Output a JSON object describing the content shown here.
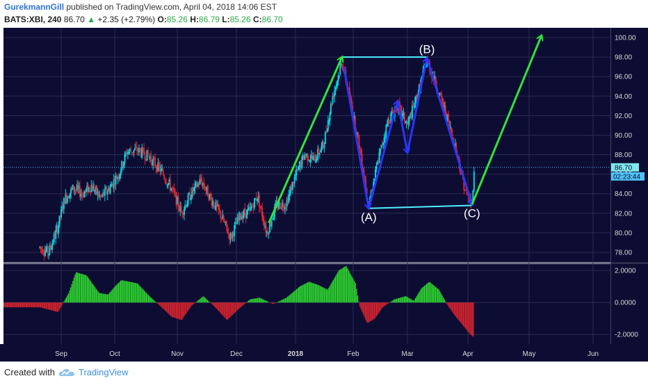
{
  "header": {
    "author": "GurekmannGill",
    "published": "published on TradingView.com, April 04, 2018 14:06 EST",
    "symbol": "BATS:XBI, 240",
    "last": "86.70",
    "change_arrow": "▲",
    "change": "+2.35 (+2.79%)",
    "o_label": "O:",
    "o_value": "85.26",
    "h_label": "H:",
    "h_value": "86.79",
    "l_label": "L:",
    "l_value": "85.26",
    "c_label": "C:",
    "c_value": "86.70"
  },
  "price_badge": "86.70",
  "countdown_badge": "02:23:44",
  "footer": {
    "created_with": "Created with",
    "brand": "TradingView",
    "logo_icon": "tradingview-cloud-icon"
  },
  "chart_data": [
    {
      "type": "candlestick",
      "symbol": "BATS:XBI",
      "interval": "240",
      "y_range": [
        77,
        101
      ],
      "yticks": [
        78,
        80,
        82,
        84,
        86,
        88,
        90,
        92,
        94,
        96,
        98,
        100
      ],
      "ytick_labels": [
        "78.00",
        "80.00",
        "82.00",
        "84.00",
        "86.00",
        "88.00",
        "90.00",
        "92.00",
        "94.00",
        "96.00",
        "98.00",
        "100.00"
      ],
      "x_labels": [
        "Sep",
        "Oct",
        "Nov",
        "Dec",
        "2018",
        "Feb",
        "Mar",
        "Apr",
        "May",
        "Jun"
      ],
      "last_price": 86.7,
      "up_color": "#00d4e0",
      "down_color": "#e0252e",
      "price_path": [
        {
          "date": "Aug 20",
          "price": 78.5
        },
        {
          "date": "Aug 25",
          "price": 78.0
        },
        {
          "date": "Aug 30",
          "price": 80.5
        },
        {
          "date": "Sep 3",
          "price": 83.5
        },
        {
          "date": "Sep 8",
          "price": 84.6
        },
        {
          "date": "Sep 13",
          "price": 84.0
        },
        {
          "date": "Sep 18",
          "price": 84.8
        },
        {
          "date": "Sep 23",
          "price": 83.6
        },
        {
          "date": "Sep 28",
          "price": 84.5
        },
        {
          "date": "Oct 3",
          "price": 86.0
        },
        {
          "date": "Oct 7",
          "price": 88.3
        },
        {
          "date": "Oct 12",
          "price": 88.5
        },
        {
          "date": "Oct 18",
          "price": 87.8
        },
        {
          "date": "Oct 24",
          "price": 86.3
        },
        {
          "date": "Oct 29",
          "price": 84.6
        },
        {
          "date": "Nov 3",
          "price": 82.1
        },
        {
          "date": "Nov 8",
          "price": 84.0
        },
        {
          "date": "Nov 13",
          "price": 85.4
        },
        {
          "date": "Nov 18",
          "price": 83.5
        },
        {
          "date": "Nov 23",
          "price": 81.8
        },
        {
          "date": "Nov 28",
          "price": 79.5
        },
        {
          "date": "Dec 3",
          "price": 81.8
        },
        {
          "date": "Dec 8",
          "price": 82.2
        },
        {
          "date": "Dec 12",
          "price": 83.8
        },
        {
          "date": "Dec 17",
          "price": 80.0
        },
        {
          "date": "Dec 22",
          "price": 82.8
        },
        {
          "date": "Dec 27",
          "price": 83.0
        },
        {
          "date": "Jan 1",
          "price": 85.8
        },
        {
          "date": "Jan 6",
          "price": 88.0
        },
        {
          "date": "Jan 11",
          "price": 87.5
        },
        {
          "date": "Jan 16",
          "price": 89.0
        },
        {
          "date": "Jan 21",
          "price": 94.0
        },
        {
          "date": "Jan 26",
          "price": 97.5
        },
        {
          "date": "Jan 31",
          "price": 93.0
        },
        {
          "date": "Feb 5",
          "price": 88.0
        },
        {
          "date": "Feb 9",
          "price": 82.8
        },
        {
          "date": "Feb 14",
          "price": 87.5
        },
        {
          "date": "Feb 19",
          "price": 91.5
        },
        {
          "date": "Feb 24",
          "price": 93.0
        },
        {
          "date": "Mar 1",
          "price": 91.0
        },
        {
          "date": "Mar 6",
          "price": 94.0
        },
        {
          "date": "Mar 11",
          "price": 97.7
        },
        {
          "date": "Mar 16",
          "price": 95.0
        },
        {
          "date": "Mar 21",
          "price": 92.0
        },
        {
          "date": "Mar 26",
          "price": 88.5
        },
        {
          "date": "Mar 31",
          "price": 84.0
        },
        {
          "date": "Apr 3",
          "price": 83.0
        },
        {
          "date": "Apr 4",
          "price": 86.7
        }
      ],
      "annotations": {
        "labels": [
          {
            "text": "(A)",
            "date": "Feb 9",
            "price": 81.2
          },
          {
            "text": "(B)",
            "date": "Mar 11",
            "price": 98.4
          },
          {
            "text": "(C)",
            "date": "Apr 3",
            "price": 81.6
          }
        ],
        "green_arrows": [
          {
            "from": {
              "date": "Dec 18",
              "price": 81.0
            },
            "to": {
              "date": "Jan 26",
              "price": 98.0
            }
          },
          {
            "from": {
              "date": "Apr 3",
              "price": 82.9
            },
            "to": {
              "date": "May 7",
              "price": 100.2
            }
          }
        ],
        "cyan_lines": [
          {
            "from": {
              "date": "Jan 26",
              "price": 98.0
            },
            "to": {
              "date": "Mar 11",
              "price": 98.0
            }
          },
          {
            "from": {
              "date": "Feb 9",
              "price": 82.5
            },
            "to": {
              "date": "Apr 3",
              "price": 82.8
            }
          }
        ],
        "blue_arrows": [
          {
            "from": {
              "date": "Jan 27",
              "price": 97.0
            },
            "to": {
              "date": "Feb 9",
              "price": 82.5
            }
          },
          {
            "from": {
              "date": "Feb 9",
              "price": 82.5
            },
            "to": {
              "date": "Feb 24",
              "price": 93.5
            }
          },
          {
            "from": {
              "date": "Feb 24",
              "price": 93.5
            },
            "to": {
              "date": "Mar 1",
              "price": 88.2
            }
          },
          {
            "from": {
              "date": "Mar 1",
              "price": 88.2
            },
            "to": {
              "date": "Mar 11",
              "price": 97.9
            }
          },
          {
            "from": {
              "date": "Mar 11",
              "price": 97.9
            },
            "to": {
              "date": "Apr 3",
              "price": 82.9
            }
          }
        ]
      }
    },
    {
      "type": "histogram",
      "name": "oscillator",
      "y_range": [
        -2.6,
        2.4
      ],
      "yticks": [
        2,
        0,
        -2
      ],
      "ytick_labels": [
        "2.0000",
        "0.0000",
        "-2.0000"
      ],
      "pos_color": "#2edc2e",
      "neg_color": "#e0252e",
      "profile": [
        {
          "date": "Aug 20",
          "value": -0.3
        },
        {
          "date": "Aug 30",
          "value": -0.6
        },
        {
          "date": "Sep 5",
          "value": 0.6
        },
        {
          "date": "Sep 9",
          "value": 1.9
        },
        {
          "date": "Sep 15",
          "value": 1.7
        },
        {
          "date": "Sep 22",
          "value": 0.6
        },
        {
          "date": "Sep 27",
          "value": 0.5
        },
        {
          "date": "Oct 4",
          "value": 1.4
        },
        {
          "date": "Oct 12",
          "value": 1.2
        },
        {
          "date": "Oct 18",
          "value": 0.4
        },
        {
          "date": "Oct 24",
          "value": -0.3
        },
        {
          "date": "Oct 29",
          "value": -0.9
        },
        {
          "date": "Nov 3",
          "value": -1.1
        },
        {
          "date": "Nov 8",
          "value": -0.2
        },
        {
          "date": "Nov 14",
          "value": 0.4
        },
        {
          "date": "Nov 20",
          "value": -0.3
        },
        {
          "date": "Nov 26",
          "value": -1.1
        },
        {
          "date": "Dec 2",
          "value": -0.4
        },
        {
          "date": "Dec 8",
          "value": 0.2
        },
        {
          "date": "Dec 13",
          "value": 0.3
        },
        {
          "date": "Dec 20",
          "value": -0.1
        },
        {
          "date": "Dec 27",
          "value": 0.3
        },
        {
          "date": "Jan 3",
          "value": 1.0
        },
        {
          "date": "Jan 8",
          "value": 1.3
        },
        {
          "date": "Jan 13",
          "value": 1.1
        },
        {
          "date": "Jan 18",
          "value": 0.8
        },
        {
          "date": "Jan 24",
          "value": 2.0
        },
        {
          "date": "Jan 28",
          "value": 2.3
        },
        {
          "date": "Feb 2",
          "value": 1.2
        },
        {
          "date": "Feb 4",
          "value": -0.2
        },
        {
          "date": "Feb 8",
          "value": -1.3
        },
        {
          "date": "Feb 12",
          "value": -1.0
        },
        {
          "date": "Feb 16",
          "value": -0.3
        },
        {
          "date": "Feb 22",
          "value": 0.2
        },
        {
          "date": "Feb 28",
          "value": 0.4
        },
        {
          "date": "Mar 4",
          "value": 0.1
        },
        {
          "date": "Mar 8",
          "value": 0.9
        },
        {
          "date": "Mar 12",
          "value": 1.3
        },
        {
          "date": "Mar 17",
          "value": 0.8
        },
        {
          "date": "Mar 21",
          "value": -0.1
        },
        {
          "date": "Mar 25",
          "value": -0.8
        },
        {
          "date": "Mar 29",
          "value": -1.4
        },
        {
          "date": "Apr 2",
          "value": -2.0
        },
        {
          "date": "Apr 4",
          "value": -2.2
        }
      ]
    }
  ]
}
